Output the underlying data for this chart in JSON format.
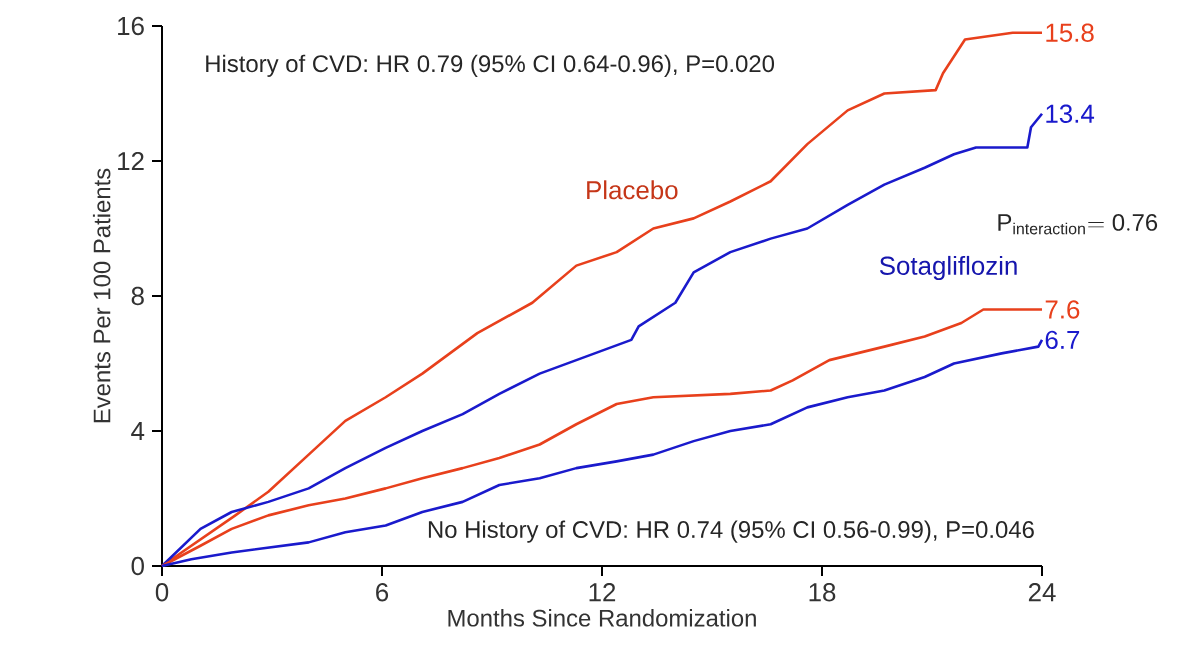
{
  "chart_data": {
    "type": "line",
    "xlabel": "Months Since Randomization",
    "ylabel": "Events Per 100 Patients",
    "xlim": [
      0,
      24
    ],
    "ylim": [
      0,
      16
    ],
    "xticks": [
      0,
      6,
      12,
      18,
      24
    ],
    "yticks": [
      0,
      4,
      8,
      12,
      16
    ],
    "grid": false,
    "legend": false,
    "marker": "none",
    "line_style": "solid",
    "annotations": [
      "History of CVD: HR 0.79 (95% CI 0.64-0.96), P=0.020",
      "No History of CVD: HR 0.74 (95% CI 0.56-0.99), P=0.046",
      "\\mathrm{P}_{\\mathrm{interaction}}\\mathrm{=0.76}"
    ],
    "series": [
      {
        "name": "Placebo",
        "color": "#e8401c",
        "x": [
          0,
          2,
          2.9,
          4,
          5,
          6.1,
          7.1,
          8.6,
          10.1,
          11.3,
          12.4,
          13.4,
          14.5,
          15.5,
          16.6,
          17.6,
          18.7,
          19.7,
          21.1,
          21.3,
          21.9,
          23.2,
          24
        ],
        "values": [
          0,
          1.5,
          2.2,
          3.3,
          4.3,
          5.0,
          5.7,
          6.9,
          7.8,
          8.9,
          9.3,
          10.0,
          10.3,
          10.8,
          11.4,
          12.5,
          13.5,
          14.0,
          14.1,
          14.6,
          15.6,
          15.8,
          15.8
        ],
        "value_labels": [
          null,
          null,
          null,
          null,
          null,
          null,
          null,
          null,
          null,
          null,
          null,
          null,
          null,
          null,
          null,
          null,
          null,
          null,
          null,
          null,
          null,
          null,
          "15.8"
        ]
      },
      {
        "name": "Sotagliflozin",
        "color": "#1a1acc",
        "x": [
          0,
          1.05,
          1.9,
          2.9,
          4,
          5,
          6.1,
          7.1,
          8.2,
          9.2,
          10.3,
          11.3,
          12.8,
          13,
          14,
          14.5,
          15.5,
          16.6,
          17.6,
          18.7,
          19.7,
          20.8,
          21.6,
          22.2,
          23.6,
          23.7,
          24
        ],
        "values": [
          0,
          1.1,
          1.6,
          1.9,
          2.3,
          2.9,
          3.5,
          4.0,
          4.5,
          5.1,
          5.7,
          6.1,
          6.7,
          7.1,
          7.8,
          8.7,
          9.3,
          9.7,
          10.0,
          10.7,
          11.3,
          11.8,
          12.2,
          12.4,
          12.4,
          13.0,
          13.4
        ],
        "value_labels": [
          null,
          null,
          null,
          null,
          null,
          null,
          null,
          null,
          null,
          null,
          null,
          null,
          null,
          null,
          null,
          null,
          null,
          null,
          null,
          null,
          null,
          null,
          null,
          null,
          null,
          null,
          "13.4"
        ]
      },
      {
        "color": "#e8401c",
        "x": [
          0,
          1.05,
          1.9,
          2.9,
          4,
          5,
          6.1,
          7.1,
          8.2,
          9.2,
          10.3,
          11.3,
          12.4,
          13.4,
          15.5,
          16.6,
          17.2,
          18.2,
          19.7,
          20.8,
          21.8,
          22.4,
          24
        ],
        "values": [
          0,
          0.6,
          1.1,
          1.5,
          1.8,
          2.0,
          2.3,
          2.6,
          2.9,
          3.2,
          3.6,
          4.2,
          4.8,
          5.0,
          5.1,
          5.2,
          5.5,
          6.1,
          6.5,
          6.8,
          7.2,
          7.6,
          7.6
        ],
        "value_labels": [
          null,
          null,
          null,
          null,
          null,
          null,
          null,
          null,
          null,
          null,
          null,
          null,
          null,
          null,
          null,
          null,
          null,
          null,
          null,
          null,
          null,
          null,
          "7.6"
        ]
      },
      {
        "color": "#1a1acc",
        "x": [
          0,
          0.8,
          1.9,
          4,
          5,
          6.1,
          7.1,
          8.2,
          9.2,
          10.3,
          11.3,
          12.4,
          13.4,
          14.5,
          15.5,
          16.6,
          17.6,
          18.7,
          19.7,
          20.8,
          21.6,
          22.9,
          23.9,
          24
        ],
        "values": [
          0,
          0.2,
          0.4,
          0.7,
          1.0,
          1.2,
          1.6,
          1.9,
          2.4,
          2.6,
          2.9,
          3.1,
          3.3,
          3.7,
          4.0,
          4.2,
          4.7,
          5.0,
          5.2,
          5.6,
          6.0,
          6.3,
          6.5,
          6.7
        ],
        "value_labels": [
          null,
          null,
          null,
          null,
          null,
          null,
          null,
          null,
          null,
          null,
          null,
          null,
          null,
          null,
          null,
          null,
          null,
          null,
          null,
          null,
          null,
          null,
          null,
          "6.7"
        ]
      }
    ]
  }
}
